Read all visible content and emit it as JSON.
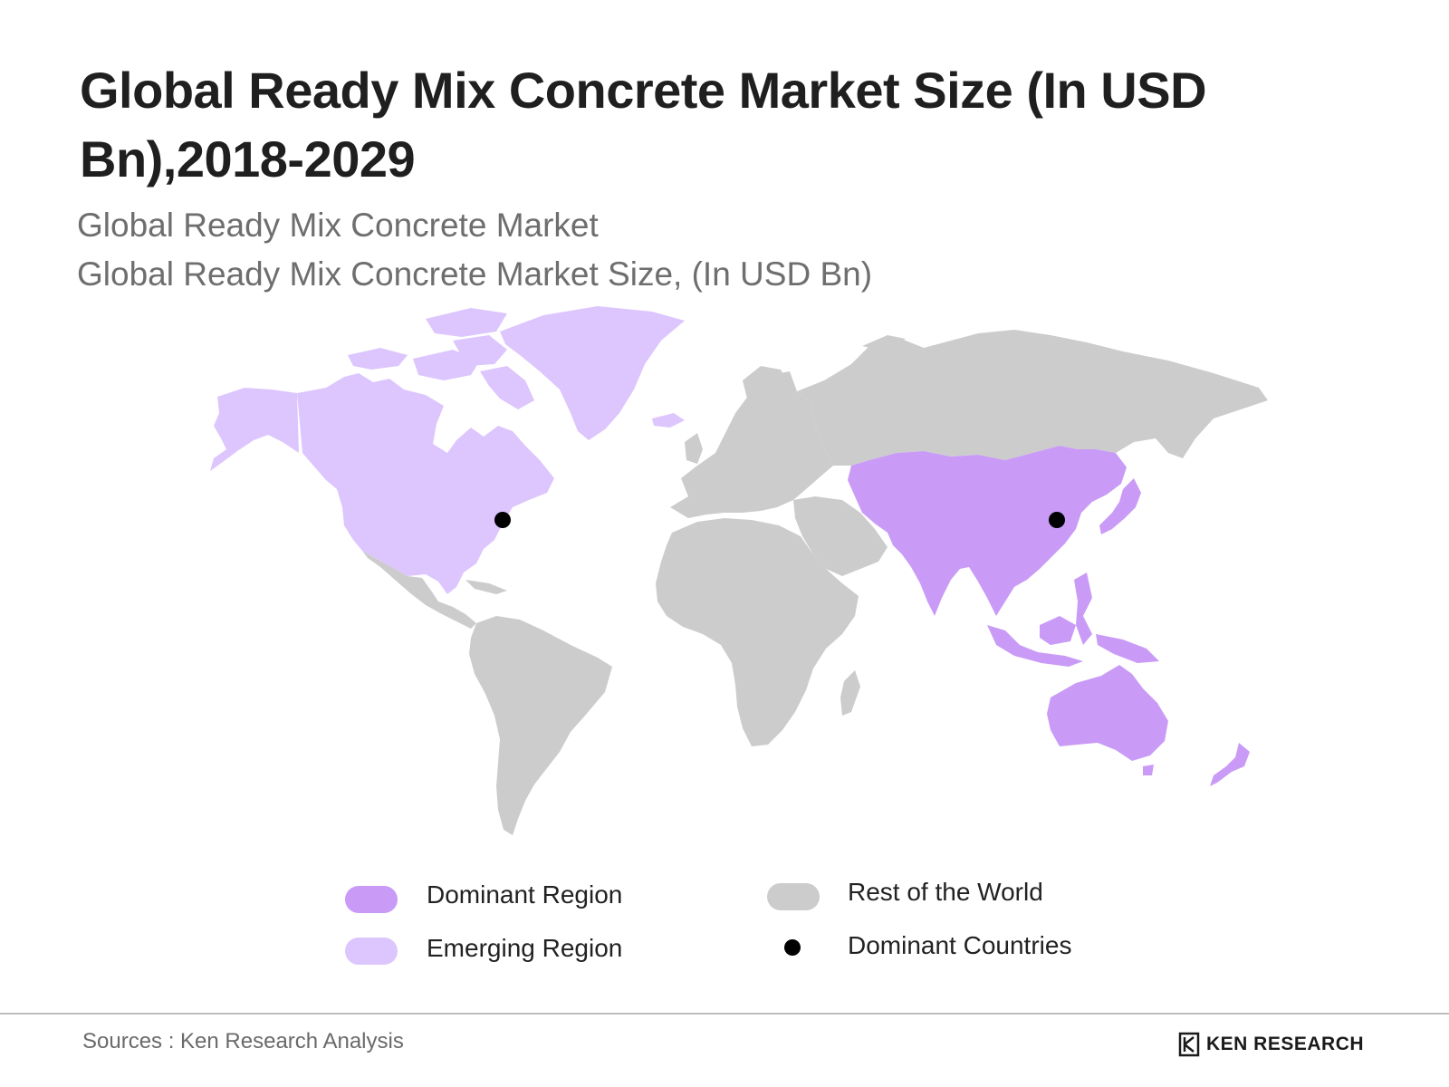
{
  "title": "Global Ready Mix Concrete Market Size (In USD Bn),2018-2029",
  "subtitle_1": "Global Ready Mix Concrete Market",
  "subtitle_2": "Global Ready Mix Concrete Market Size, (In USD Bn)",
  "legend": {
    "dominant_region": "Dominant Region",
    "emerging_region": "Emerging Region",
    "rest_of_world": "Rest of the World",
    "dominant_countries": "Dominant Countries"
  },
  "colors": {
    "dominant": "#c99bf7",
    "emerging": "#dcc6fd",
    "rest": "#cccccc",
    "marker": "#000000"
  },
  "dominant_country_markers": [
    "United States",
    "China"
  ],
  "source": "Sources : Ken Research Analysis",
  "brand": "KEN RESEARCH"
}
